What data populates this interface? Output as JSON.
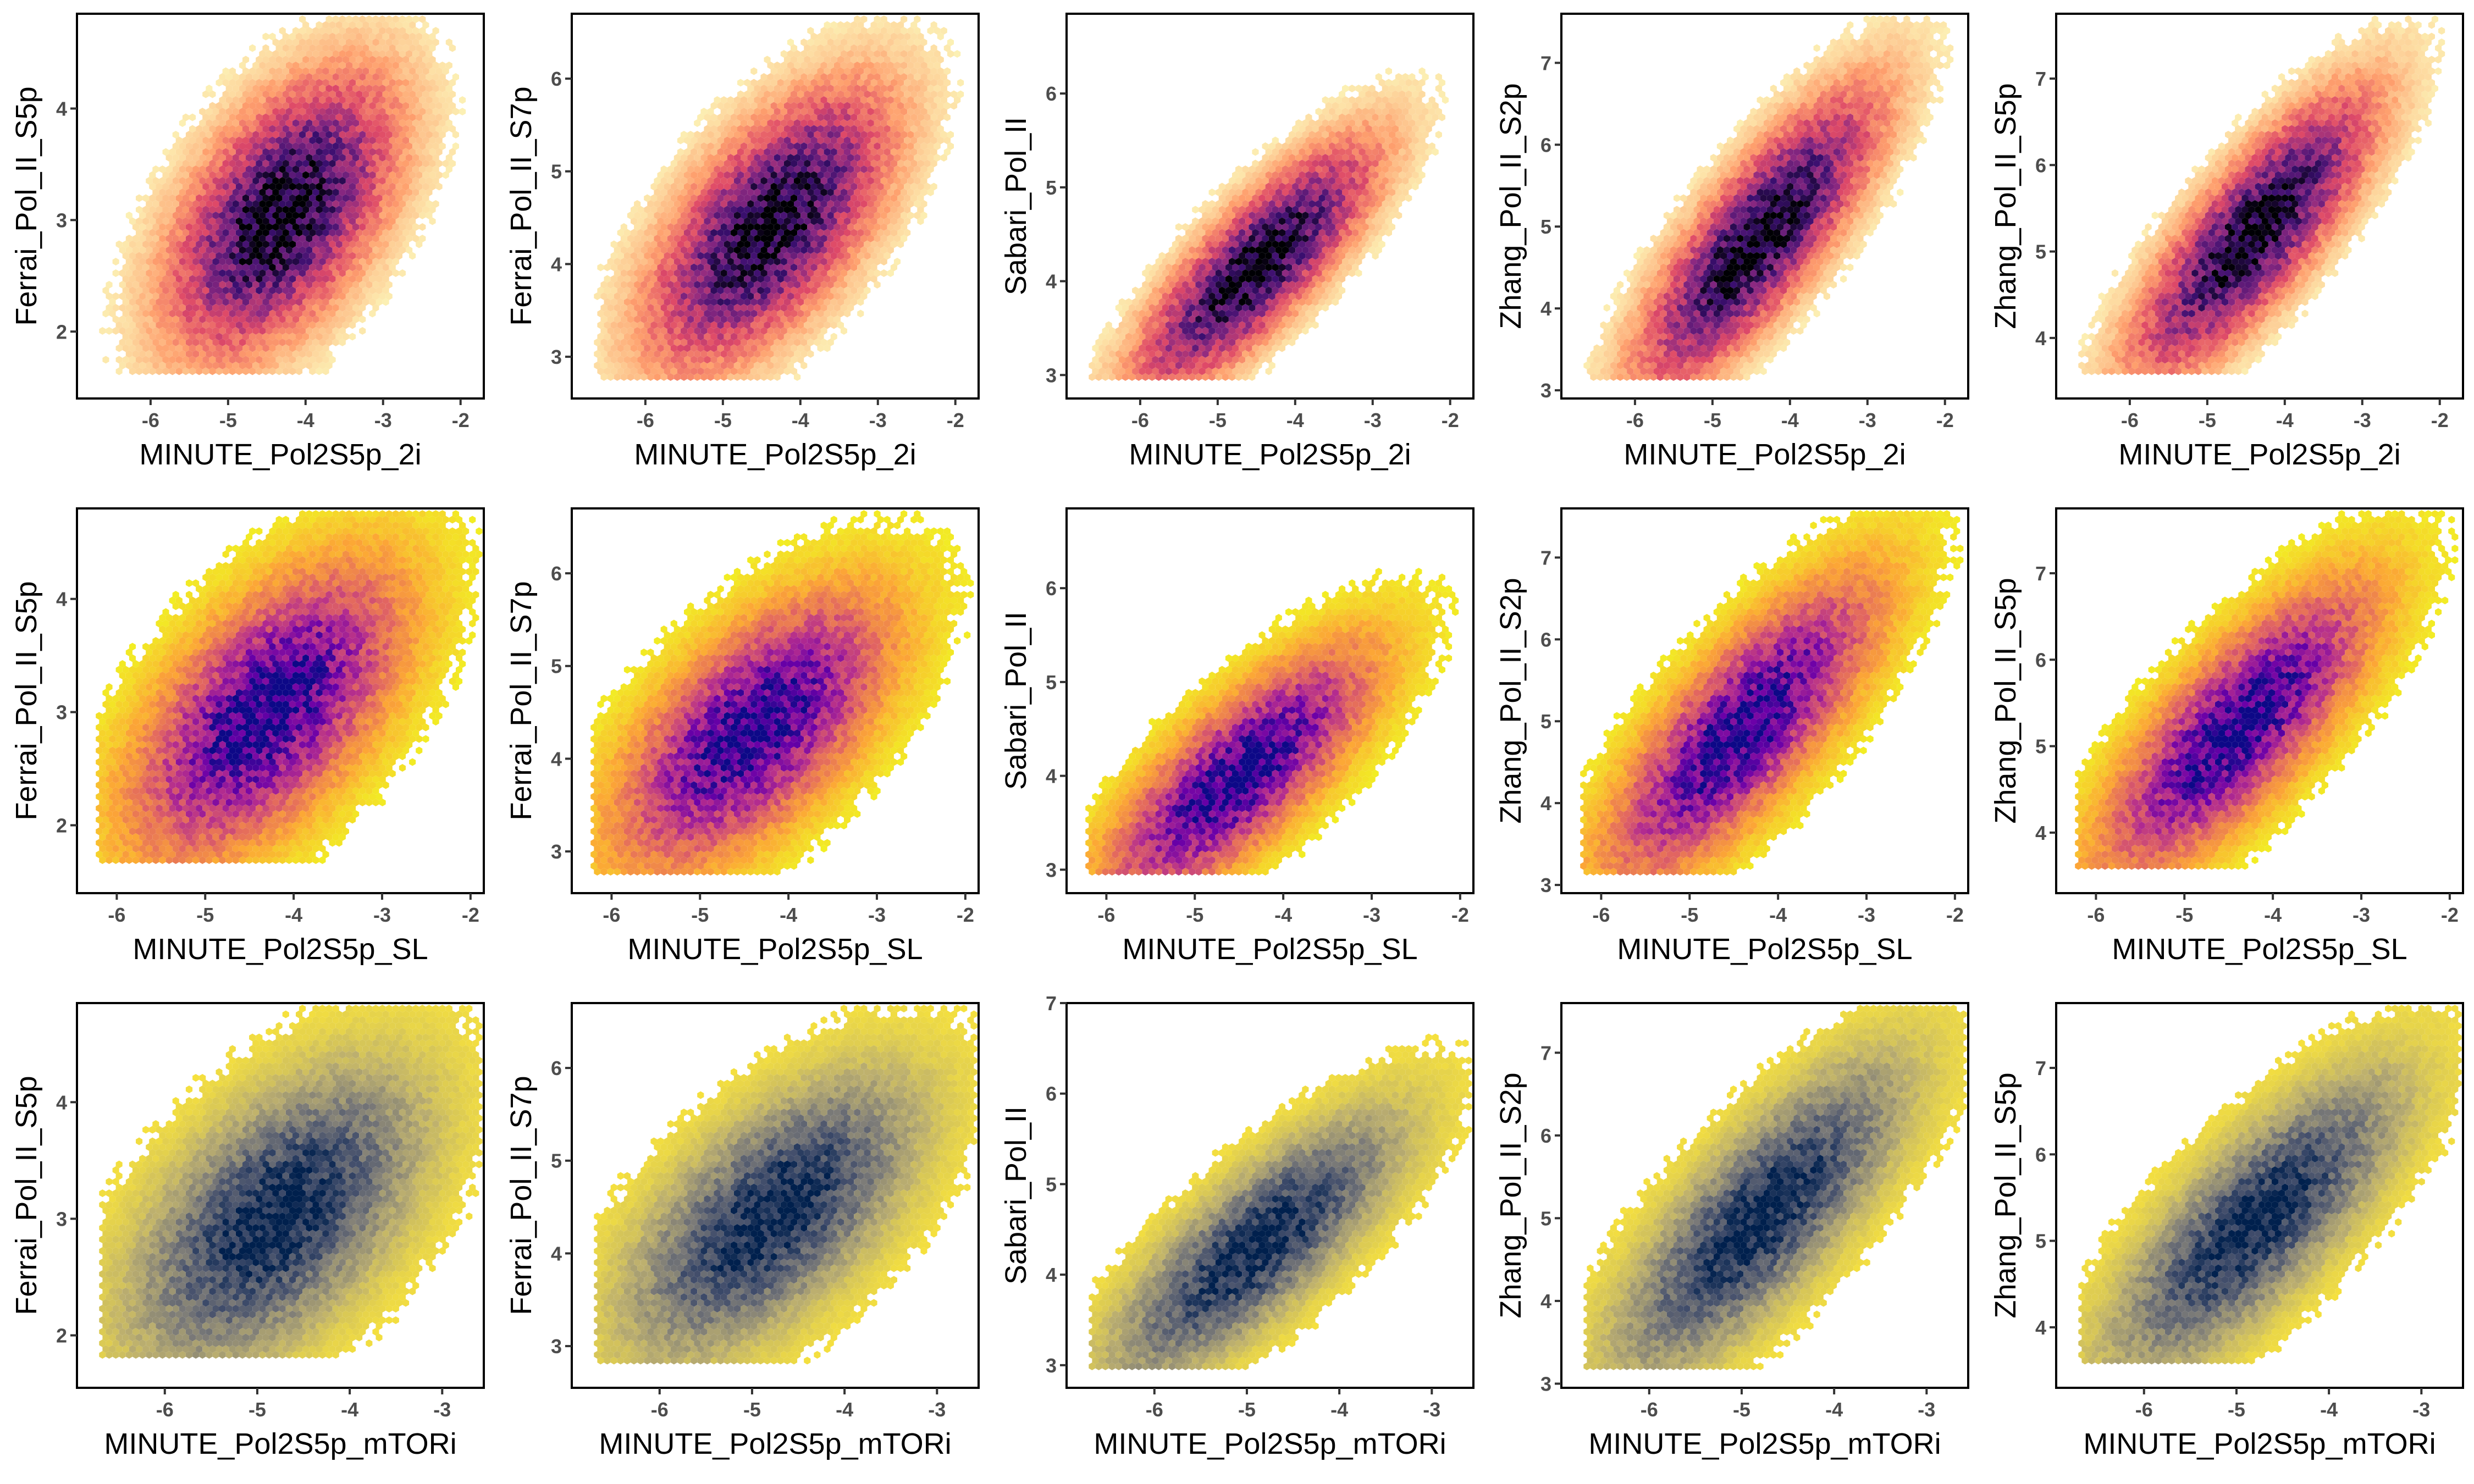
{
  "chart_data": [
    {
      "type": "hexbin-scatter",
      "xlabel": "MINUTE_Pol2S5p_2i",
      "ylabel": "Ferrai_Pol_II_S5p",
      "xlim": [
        -6.95,
        -1.7
      ],
      "ylim": [
        1.4,
        4.85
      ],
      "xticks": [
        -6,
        -5,
        -4,
        -3,
        -2
      ],
      "yticks": [
        2,
        3,
        4
      ],
      "palette": "magma",
      "center": [
        -4.3,
        3.05
      ],
      "slope": 0.45,
      "xspread": 0.75,
      "yspread": 0.55,
      "xfloor": -6.65,
      "yfloor": 1.62
    },
    {
      "type": "hexbin-scatter",
      "xlabel": "MINUTE_Pol2S5p_2i",
      "ylabel": "Ferrai_Pol_II_S7p",
      "xlim": [
        -6.95,
        -1.7
      ],
      "ylim": [
        2.55,
        6.7
      ],
      "xticks": [
        -6,
        -5,
        -4,
        -3,
        -2
      ],
      "yticks": [
        3,
        4,
        5,
        6
      ],
      "palette": "magma",
      "center": [
        -4.4,
        4.4
      ],
      "slope": 0.6,
      "xspread": 0.8,
      "yspread": 0.6,
      "xfloor": -6.65,
      "yfloor": 2.75
    },
    {
      "type": "hexbin-scatter",
      "xlabel": "MINUTE_Pol2S5p_2i",
      "ylabel": "Sabari_Pol_II",
      "xlim": [
        -6.95,
        -1.7
      ],
      "ylim": [
        2.75,
        6.85
      ],
      "xticks": [
        -6,
        -5,
        -4,
        -3,
        -2
      ],
      "yticks": [
        3,
        4,
        5,
        6
      ],
      "palette": "magma",
      "center": [
        -4.5,
        4.15
      ],
      "slope": 0.7,
      "xspread": 0.8,
      "yspread": 0.4,
      "xfloor": -6.65,
      "yfloor": 2.95
    },
    {
      "type": "hexbin-scatter",
      "xlabel": "MINUTE_Pol2S5p_2i",
      "ylabel": "Zhang_Pol_II_S2p",
      "xlim": [
        -6.95,
        -1.7
      ],
      "ylim": [
        2.9,
        7.6
      ],
      "xticks": [
        -6,
        -5,
        -4,
        -3,
        -2
      ],
      "yticks": [
        3,
        4,
        5,
        6,
        7
      ],
      "palette": "magma",
      "center": [
        -4.4,
        4.85
      ],
      "slope": 0.95,
      "xspread": 0.8,
      "yspread": 0.55,
      "xfloor": -6.65,
      "yfloor": 3.15
    },
    {
      "type": "hexbin-scatter",
      "xlabel": "MINUTE_Pol2S5p_2i",
      "ylabel": "Zhang_Pol_II_S5p",
      "xlim": [
        -6.95,
        -1.7
      ],
      "ylim": [
        3.3,
        7.75
      ],
      "xticks": [
        -6,
        -5,
        -4,
        -3,
        -2
      ],
      "yticks": [
        4,
        5,
        6,
        7
      ],
      "palette": "magma",
      "center": [
        -4.4,
        5.2
      ],
      "slope": 0.85,
      "xspread": 0.8,
      "yspread": 0.5,
      "xfloor": -6.65,
      "yfloor": 3.55
    },
    {
      "type": "hexbin-scatter",
      "xlabel": "MINUTE_Pol2S5p_SL",
      "ylabel": "Ferrai_Pol_II_S5p",
      "xlim": [
        -6.45,
        -1.85
      ],
      "ylim": [
        1.4,
        4.8
      ],
      "xticks": [
        -6,
        -5,
        -4,
        -3,
        -2
      ],
      "yticks": [
        2,
        3,
        4
      ],
      "palette": "plasma",
      "center": [
        -4.3,
        3.0
      ],
      "slope": 0.5,
      "xspread": 0.8,
      "yspread": 0.55,
      "xfloor": -6.2,
      "yfloor": 1.65
    },
    {
      "type": "hexbin-scatter",
      "xlabel": "MINUTE_Pol2S5p_SL",
      "ylabel": "Ferrai_Pol_II_S7p",
      "xlim": [
        -6.45,
        -1.85
      ],
      "ylim": [
        2.55,
        6.7
      ],
      "xticks": [
        -6,
        -5,
        -4,
        -3,
        -2
      ],
      "yticks": [
        3,
        4,
        5,
        6
      ],
      "palette": "plasma",
      "center": [
        -4.4,
        4.3
      ],
      "slope": 0.6,
      "xspread": 0.8,
      "yspread": 0.6,
      "xfloor": -6.2,
      "yfloor": 2.75
    },
    {
      "type": "hexbin-scatter",
      "xlabel": "MINUTE_Pol2S5p_SL",
      "ylabel": "Sabari_Pol_II",
      "xlim": [
        -6.45,
        -1.85
      ],
      "ylim": [
        2.75,
        6.85
      ],
      "xticks": [
        -6,
        -5,
        -4,
        -3,
        -2
      ],
      "yticks": [
        3,
        4,
        5,
        6
      ],
      "palette": "plasma",
      "center": [
        -4.5,
        4.0
      ],
      "slope": 0.7,
      "xspread": 0.8,
      "yspread": 0.45,
      "xfloor": -6.2,
      "yfloor": 2.95
    },
    {
      "type": "hexbin-scatter",
      "xlabel": "MINUTE_Pol2S5p_SL",
      "ylabel": "Zhang_Pol_II_S2p",
      "xlim": [
        -6.45,
        -1.85
      ],
      "ylim": [
        2.9,
        7.6
      ],
      "xticks": [
        -6,
        -5,
        -4,
        -3,
        -2
      ],
      "yticks": [
        3,
        4,
        5,
        6,
        7
      ],
      "palette": "plasma",
      "center": [
        -4.4,
        4.9
      ],
      "slope": 0.95,
      "xspread": 0.8,
      "yspread": 0.6,
      "xfloor": -6.2,
      "yfloor": 3.15
    },
    {
      "type": "hexbin-scatter",
      "xlabel": "MINUTE_Pol2S5p_SL",
      "ylabel": "Zhang_Pol_II_S5p",
      "xlim": [
        -6.45,
        -1.85
      ],
      "ylim": [
        3.3,
        7.75
      ],
      "xticks": [
        -6,
        -5,
        -4,
        -3,
        -2
      ],
      "yticks": [
        4,
        5,
        6,
        7
      ],
      "palette": "plasma",
      "center": [
        -4.4,
        5.2
      ],
      "slope": 0.85,
      "xspread": 0.8,
      "yspread": 0.55,
      "xfloor": -6.2,
      "yfloor": 3.55
    },
    {
      "type": "hexbin-scatter",
      "xlabel": "MINUTE_Pol2S5p_mTORi",
      "ylabel": "Ferrai_Pol_II_S5p",
      "xlim": [
        -6.95,
        -2.55
      ],
      "ylim": [
        1.55,
        4.85
      ],
      "xticks": [
        -6,
        -5,
        -4,
        -3
      ],
      "yticks": [
        2,
        3,
        4
      ],
      "palette": "cividis",
      "center": [
        -4.8,
        3.0
      ],
      "slope": 0.45,
      "xspread": 0.8,
      "yspread": 0.55,
      "xfloor": -6.7,
      "yfloor": 1.8
    },
    {
      "type": "hexbin-scatter",
      "xlabel": "MINUTE_Pol2S5p_mTORi",
      "ylabel": "Ferrai_Pol_II_S7p",
      "xlim": [
        -6.95,
        -2.55
      ],
      "ylim": [
        2.55,
        6.7
      ],
      "xticks": [
        -6,
        -5,
        -4,
        -3
      ],
      "yticks": [
        3,
        4,
        5,
        6
      ],
      "palette": "cividis",
      "center": [
        -4.8,
        4.4
      ],
      "slope": 0.6,
      "xspread": 0.8,
      "yspread": 0.6,
      "xfloor": -6.7,
      "yfloor": 2.8
    },
    {
      "type": "hexbin-scatter",
      "xlabel": "MINUTE_Pol2S5p_mTORi",
      "ylabel": "Sabari_Pol_II",
      "xlim": [
        -6.95,
        -2.55
      ],
      "ylim": [
        2.75,
        7.0
      ],
      "xticks": [
        -6,
        -5,
        -4,
        -3
      ],
      "yticks": [
        3,
        4,
        5,
        6,
        7
      ],
      "palette": "cividis",
      "center": [
        -4.9,
        4.3
      ],
      "slope": 0.75,
      "xspread": 0.8,
      "yspread": 0.45,
      "xfloor": -6.7,
      "yfloor": 2.95
    },
    {
      "type": "hexbin-scatter",
      "xlabel": "MINUTE_Pol2S5p_mTORi",
      "ylabel": "Zhang_Pol_II_S2p",
      "xlim": [
        -6.95,
        -2.55
      ],
      "ylim": [
        2.95,
        7.6
      ],
      "xticks": [
        -6,
        -5,
        -4,
        -3
      ],
      "yticks": [
        3,
        4,
        5,
        6,
        7
      ],
      "palette": "cividis",
      "center": [
        -4.8,
        5.0
      ],
      "slope": 0.95,
      "xspread": 0.8,
      "yspread": 0.6,
      "xfloor": -6.7,
      "yfloor": 3.2
    },
    {
      "type": "hexbin-scatter",
      "xlabel": "MINUTE_Pol2S5p_mTORi",
      "ylabel": "Zhang_Pol_II_S5p",
      "xlim": [
        -6.95,
        -2.55
      ],
      "ylim": [
        3.3,
        7.75
      ],
      "xticks": [
        -6,
        -5,
        -4,
        -3
      ],
      "yticks": [
        4,
        5,
        6,
        7
      ],
      "palette": "cividis",
      "center": [
        -4.8,
        5.2
      ],
      "slope": 0.85,
      "xspread": 0.8,
      "yspread": 0.55,
      "xfloor": -6.7,
      "yfloor": 3.55
    }
  ],
  "colors": {
    "axis_line": "#000000",
    "tick_text": "#4d4d4d",
    "background": "#ffffff",
    "palettes": {
      "magma": [
        "#000004",
        "#3b0f70",
        "#8c2981",
        "#de4968",
        "#fe9f6d",
        "#fcfdbf"
      ],
      "plasma": [
        "#0d0887",
        "#6a00a8",
        "#b12a90",
        "#e16462",
        "#fca636",
        "#f0f921"
      ],
      "cividis": [
        "#00204d",
        "#414d6b",
        "#7c7b78",
        "#bcaf6f",
        "#fde737"
      ]
    }
  }
}
